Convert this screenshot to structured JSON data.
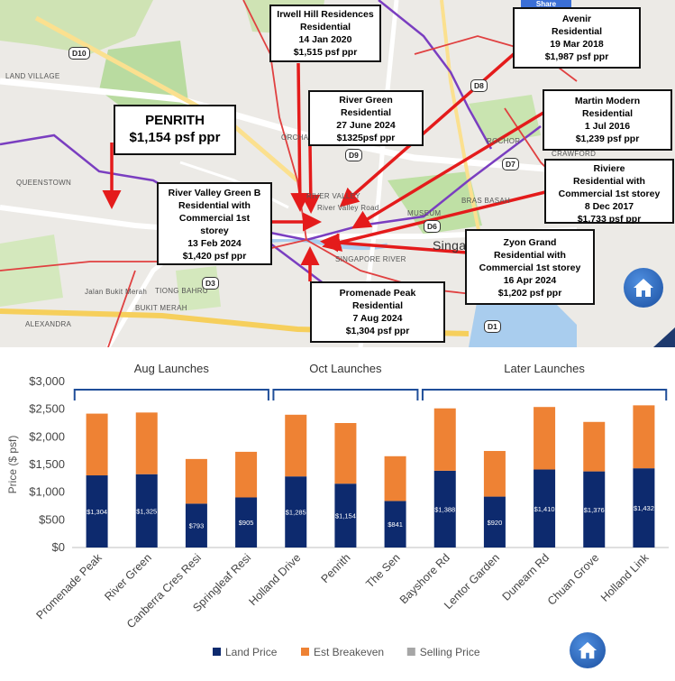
{
  "map": {
    "share_label": "Share",
    "region_labels": [
      {
        "name": "land-village",
        "text": "LAND VILLAGE"
      },
      {
        "name": "queenstown",
        "text": "QUEENSTOWN"
      },
      {
        "name": "alexandra",
        "text": "ALEXANDRA"
      },
      {
        "name": "tiong-bahru",
        "text": "TIONG BAHRU"
      },
      {
        "name": "bukit-merah",
        "text": "BUKIT MERAH"
      },
      {
        "name": "jalan-bukit-merah",
        "text": "Jalan Bukit Merah"
      },
      {
        "name": "river-valley",
        "text": "RIVER VALLEY"
      },
      {
        "name": "river-valley-road",
        "text": "River Valley Road"
      },
      {
        "name": "singapore-river",
        "text": "SINGAPORE RIVER"
      },
      {
        "name": "museum",
        "text": "MUSEUM"
      },
      {
        "name": "bras-basah",
        "text": "BRAS BASAH"
      },
      {
        "name": "rochor",
        "text": "ROCHOR"
      },
      {
        "name": "singa",
        "text": "Singa"
      },
      {
        "name": "orchard",
        "text": "ORCHARD"
      },
      {
        "name": "crawford",
        "text": "CRAWFORD"
      }
    ],
    "districts": [
      "D10",
      "D9",
      "D7",
      "D6",
      "D3",
      "D1",
      "D8"
    ],
    "callouts": [
      {
        "name": "penrith",
        "lines": [
          "PENRITH",
          "$1,154 psf ppr"
        ]
      },
      {
        "name": "irwell-hill",
        "lines": [
          "Irwell Hill Residences",
          "Residential",
          "14 Jan 2020",
          "$1,515 psf ppr"
        ]
      },
      {
        "name": "avenir",
        "lines": [
          "Avenir",
          "Residential",
          "19 Mar 2018",
          "$1,987 psf ppr"
        ]
      },
      {
        "name": "river-green",
        "lines": [
          "River Green",
          "Residential",
          "27 June 2024",
          "$1325psf ppr"
        ]
      },
      {
        "name": "martin-modern",
        "lines": [
          "Martin Modern",
          "Residential",
          "1 Jul 2016",
          "$1,239 psf ppr"
        ]
      },
      {
        "name": "riviere",
        "lines": [
          "Riviere",
          "Residential with",
          "Commercial 1st storey",
          "8 Dec 2017",
          "$1,733 psf ppr"
        ]
      },
      {
        "name": "river-valley-green-b",
        "lines": [
          "River Valley Green B",
          "Residential with",
          "Commercial 1st",
          "storey",
          "13 Feb 2024",
          "$1,420 psf ppr"
        ]
      },
      {
        "name": "zyon-grand",
        "lines": [
          "Zyon Grand",
          "Residential with",
          "Commercial 1st storey",
          "16 Apr 2024",
          "$1,202 psf ppr"
        ]
      },
      {
        "name": "promenade-peak",
        "lines": [
          "Promenade Peak",
          "Residential",
          "7 Aug 2024",
          "$1,304 psf ppr"
        ]
      }
    ]
  },
  "chart_data": {
    "type": "bar",
    "stacked": true,
    "title": "",
    "xlabel": "",
    "ylabel": "Price ($ psf)",
    "ylim": [
      0,
      3000
    ],
    "yticks": [
      0,
      500,
      1000,
      1500,
      2000,
      2500,
      3000
    ],
    "ytick_labels": [
      "$0",
      "$500",
      "$1,000",
      "$1,500",
      "$2,000",
      "$2,500",
      "$3,000"
    ],
    "categories": [
      "Promenade Peak",
      "River Green",
      "Canberra Cres Resi",
      "Springleaf Resi",
      "Holland Drive",
      "Penrith",
      "The Sen",
      "Bayshore Rd",
      "Lentor Garden",
      "Dunearn Rd",
      "Chuan Grove",
      "Holland Link"
    ],
    "series": [
      {
        "name": "Land Price",
        "color": "#0d2a6e",
        "values": [
          1304,
          1325,
          793,
          905,
          1285,
          1154,
          841,
          1388,
          920,
          1410,
          1376,
          1432
        ]
      },
      {
        "name": "Est Breakeven",
        "color": "#ee8234",
        "values": [
          1116,
          1115,
          807,
          825,
          1115,
          1096,
          809,
          1127,
          825,
          1130,
          894,
          1138
        ]
      },
      {
        "name": "Selling Price",
        "color": "#a6a6a6",
        "values": [
          0,
          0,
          0,
          0,
          0,
          0,
          0,
          0,
          0,
          0,
          0,
          0
        ]
      }
    ],
    "data_labels": [
      "$1,304",
      "$1,325",
      "$793",
      "$905",
      "$1,285",
      "$1,154",
      "$841",
      "$1,388",
      "$920",
      "$1,410",
      "$1,376",
      "$1,432"
    ],
    "groups": [
      {
        "label": "Aug Launches",
        "from": 0,
        "to": 3
      },
      {
        "label": "Oct Launches",
        "from": 4,
        "to": 6
      },
      {
        "label": "Later Launches",
        "from": 7,
        "to": 11
      }
    ],
    "legend_position": "bottom"
  }
}
